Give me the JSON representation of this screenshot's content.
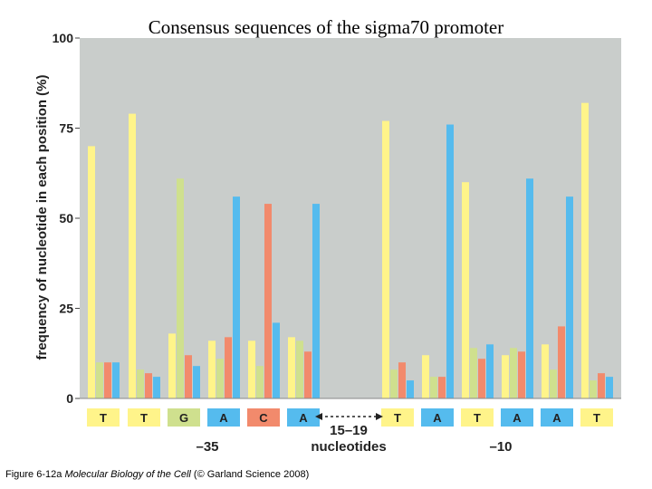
{
  "title": "Consensus sequences of the sigma70 promoter",
  "caption": {
    "prefix": "Figure 6-12a",
    "book": "Molecular Biology of the Cell",
    "suffix": "(© Garland Science 2008)"
  },
  "colors": {
    "T": "#fff48a",
    "G": "#cfe08e",
    "C": "#f28a6c",
    "A": "#55bbee",
    "plot_bg": "#c9cdcb"
  },
  "chart_data": {
    "type": "bar",
    "title": "Consensus sequences of the sigma70 promoter",
    "ylabel": "frequency of nucleotide in each position (%)",
    "ylim": [
      0,
      100
    ],
    "yticks": [
      0,
      25,
      50,
      75,
      100
    ],
    "grid": false,
    "series_order": [
      "T",
      "G",
      "C",
      "A"
    ],
    "groups": [
      {
        "consensus": "T",
        "values": {
          "T": 70,
          "G": 10,
          "C": 10,
          "A": 10
        }
      },
      {
        "consensus": "T",
        "values": {
          "T": 79,
          "G": 8,
          "C": 7,
          "A": 6
        }
      },
      {
        "consensus": "G",
        "values": {
          "T": 18,
          "G": 61,
          "C": 12,
          "A": 9
        }
      },
      {
        "consensus": "A",
        "values": {
          "T": 16,
          "G": 11,
          "C": 17,
          "A": 56
        }
      },
      {
        "consensus": "C",
        "values": {
          "T": 16,
          "G": 9,
          "C": 54,
          "A": 21
        }
      },
      {
        "consensus": "A",
        "values": {
          "T": 17,
          "G": 16,
          "C": 13,
          "A": 54
        }
      },
      {
        "consensus": "T",
        "values": {
          "T": 77,
          "G": 8,
          "C": 10,
          "A": 5
        }
      },
      {
        "consensus": "A",
        "values": {
          "T": 12,
          "G": 6,
          "C": 6,
          "A": 76
        }
      },
      {
        "consensus": "T",
        "values": {
          "T": 60,
          "G": 14,
          "C": 11,
          "A": 15
        }
      },
      {
        "consensus": "A",
        "values": {
          "T": 12,
          "G": 14,
          "C": 13,
          "A": 61
        }
      },
      {
        "consensus": "A",
        "values": {
          "T": 15,
          "G": 8,
          "C": 20,
          "A": 56
        }
      },
      {
        "consensus": "T",
        "values": {
          "T": 82,
          "G": 5,
          "C": 7,
          "A": 6
        }
      }
    ],
    "region_labels": {
      "minus35": "–35",
      "spacer_line1": "15–19",
      "spacer_line2": "nucleotides",
      "minus10": "–10"
    }
  }
}
